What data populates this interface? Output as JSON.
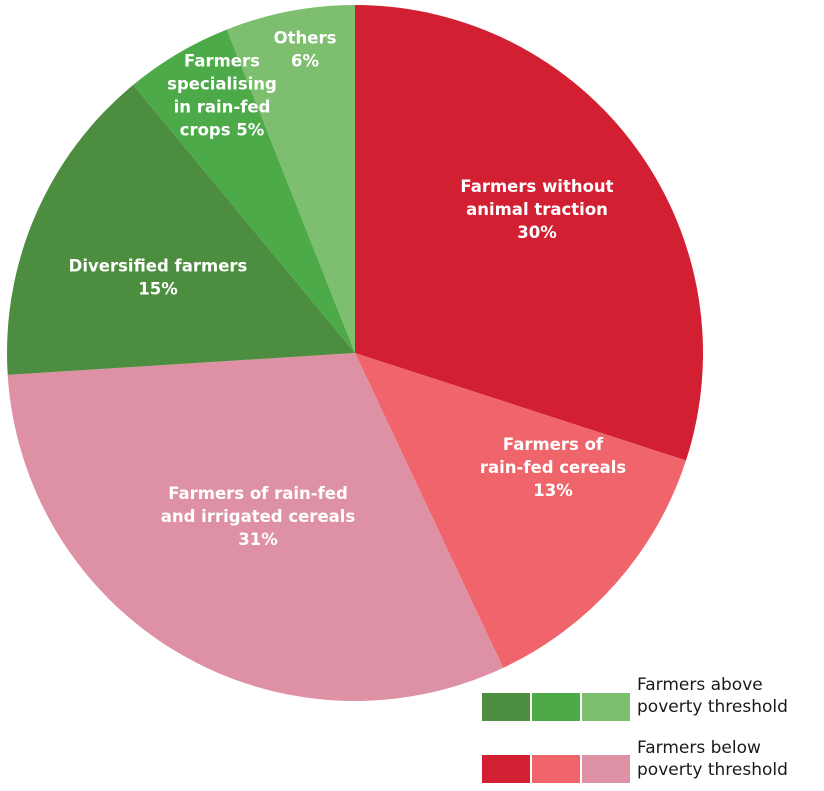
{
  "chart_data": {
    "type": "pie",
    "start_angle_deg": 0,
    "direction": "clockwise",
    "slices": [
      {
        "label_lines": [
          "Farmers without",
          "animal traction",
          "30%"
        ],
        "value": 30,
        "color": "#d31f32"
      },
      {
        "label_lines": [
          "Farmers of",
          "rain-fed cereals",
          "13%"
        ],
        "value": 13,
        "color": "#f0656b"
      },
      {
        "label_lines": [
          "Farmers of rain-fed",
          "and irrigated cereals",
          "31%"
        ],
        "value": 31,
        "color": "#de91a5"
      },
      {
        "label_lines": [
          "Diversified farmers",
          "15%"
        ],
        "value": 15,
        "color": "#4d8d3f"
      },
      {
        "label_lines": [
          "Farmers",
          "specialising",
          "in rain-fed",
          "crops 5%"
        ],
        "value": 5,
        "color": "#4caa49"
      },
      {
        "label_lines": [
          "Others",
          "6%"
        ],
        "value": 6,
        "color": "#7dbf6e"
      }
    ],
    "legend": [
      {
        "label_lines": [
          "Farmers above",
          "poverty threshold"
        ],
        "colors": [
          "#4d8d3f",
          "#4caa49",
          "#7dbf6e"
        ]
      },
      {
        "label_lines": [
          "Farmers below",
          "poverty threshold"
        ],
        "colors": [
          "#d31f32",
          "#f0656b",
          "#de91a5"
        ]
      }
    ],
    "legend_placement": "bottom-right"
  }
}
